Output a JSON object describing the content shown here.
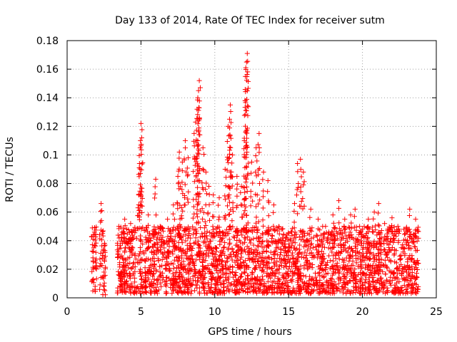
{
  "chart_data": {
    "type": "scatter",
    "title": "Day 133 of 2014, Rate Of TEC Index for receiver sutm",
    "xlabel": "GPS time / hours",
    "ylabel": "ROTI / TECUs",
    "xlim": [
      0,
      25
    ],
    "ylim": [
      0,
      0.18
    ],
    "xticks": [
      0,
      5,
      10,
      15,
      20,
      25
    ],
    "xtick_labels": [
      "0",
      "5",
      "10",
      "15",
      "20",
      "25"
    ],
    "yticks": [
      0,
      0.02,
      0.04,
      0.06,
      0.08,
      0.1,
      0.12,
      0.14,
      0.16,
      0.18
    ],
    "ytick_labels": [
      "0",
      "0.02",
      "0.04",
      "0.06",
      "0.08",
      "0.1",
      "0.12",
      "0.14",
      "0.16",
      "0.18"
    ],
    "grid": true,
    "marker": "+",
    "color": "#ff0000",
    "series": [
      {
        "name": "ROTI",
        "points": [
          [
            1.7,
            0.012
          ],
          [
            1.75,
            0.028
          ],
          [
            1.8,
            0.035
          ],
          [
            1.85,
            0.046
          ],
          [
            1.9,
            0.008
          ],
          [
            1.95,
            0.022
          ],
          [
            2.3,
            0.066
          ],
          [
            2.35,
            0.061
          ],
          [
            2.4,
            0.045
          ],
          [
            2.45,
            0.032
          ],
          [
            2.5,
            0.018
          ],
          [
            2.55,
            0.005
          ],
          [
            3.5,
            0.05
          ],
          [
            3.7,
            0.042
          ],
          [
            3.9,
            0.055
          ],
          [
            4.1,
            0.038
          ],
          [
            4.3,
            0.052
          ],
          [
            4.5,
            0.047
          ],
          [
            4.8,
            0.063
          ],
          [
            4.85,
            0.072
          ],
          [
            4.9,
            0.094
          ],
          [
            4.95,
            0.105
          ],
          [
            5.0,
            0.122
          ],
          [
            5.05,
            0.112
          ],
          [
            5.5,
            0.058
          ],
          [
            6.0,
            0.083
          ],
          [
            6.3,
            0.05
          ],
          [
            6.8,
            0.055
          ],
          [
            7.2,
            0.065
          ],
          [
            7.5,
            0.085
          ],
          [
            7.6,
            0.102
          ],
          [
            7.8,
            0.095
          ],
          [
            8.0,
            0.11
          ],
          [
            8.2,
            0.098
          ],
          [
            8.6,
            0.115
          ],
          [
            8.7,
            0.123
          ],
          [
            8.8,
            0.132
          ],
          [
            8.85,
            0.14
          ],
          [
            8.9,
            0.145
          ],
          [
            8.95,
            0.152
          ],
          [
            9.2,
            0.105
          ],
          [
            9.4,
            0.088
          ],
          [
            9.6,
            0.078
          ],
          [
            9.9,
            0.072
          ],
          [
            10.3,
            0.07
          ],
          [
            10.7,
            0.09
          ],
          [
            10.9,
            0.12
          ],
          [
            11.0,
            0.125
          ],
          [
            11.05,
            0.135
          ],
          [
            11.2,
            0.1
          ],
          [
            11.5,
            0.085
          ],
          [
            11.8,
            0.078
          ],
          [
            12.0,
            0.11
          ],
          [
            12.05,
            0.138
          ],
          [
            12.1,
            0.161
          ],
          [
            12.15,
            0.165
          ],
          [
            12.2,
            0.171
          ],
          [
            12.5,
            0.095
          ],
          [
            12.8,
            0.105
          ],
          [
            13.0,
            0.115
          ],
          [
            13.3,
            0.088
          ],
          [
            13.6,
            0.082
          ],
          [
            14.0,
            0.065
          ],
          [
            14.5,
            0.048
          ],
          [
            15.0,
            0.045
          ],
          [
            15.4,
            0.066
          ],
          [
            15.6,
            0.094
          ],
          [
            15.8,
            0.097
          ],
          [
            16.0,
            0.088
          ],
          [
            16.5,
            0.062
          ],
          [
            17.0,
            0.055
          ],
          [
            17.5,
            0.05
          ],
          [
            18.0,
            0.058
          ],
          [
            18.4,
            0.068
          ],
          [
            18.8,
            0.055
          ],
          [
            19.2,
            0.058
          ],
          [
            19.5,
            0.062
          ],
          [
            20.0,
            0.048
          ],
          [
            20.4,
            0.055
          ],
          [
            20.8,
            0.06
          ],
          [
            21.1,
            0.066
          ],
          [
            21.5,
            0.052
          ],
          [
            22.0,
            0.056
          ],
          [
            22.4,
            0.05
          ],
          [
            22.8,
            0.048
          ],
          [
            23.2,
            0.062
          ],
          [
            23.6,
            0.055
          ]
        ]
      }
    ],
    "bands": [
      {
        "x0": 1.65,
        "x1": 2.0,
        "ymin": 0.004,
        "ymax": 0.05,
        "density": 40
      },
      {
        "x0": 2.2,
        "x1": 2.6,
        "ymin": 0.002,
        "ymax": 0.048,
        "density": 40
      },
      {
        "x0": 3.4,
        "x1": 23.8,
        "ymin": 0.003,
        "ymax": 0.05,
        "density": 2600
      }
    ]
  }
}
